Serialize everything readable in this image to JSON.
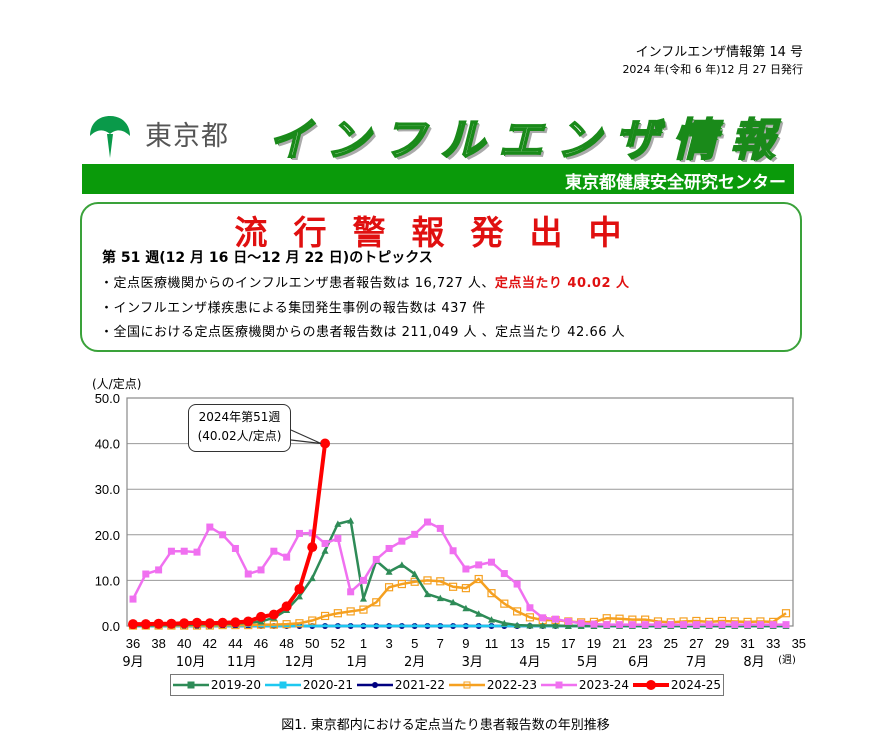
{
  "header": {
    "issue_number": "インフルエンザ情報第 14 号",
    "issue_date": "2024 年(令和 6 年)12 月 27 日発行",
    "org_name": "東京都",
    "title": "インフルエンザ情報",
    "center_name": "東京都健康安全研究センター"
  },
  "alert": {
    "headline": "流行警報発出中",
    "topics_title": "第 51 週(12 月 16 日～12 月 22 日)のトピックス",
    "topics": [
      {
        "text": "・定点医療機関からのインフルエンザ患者報告数は 16,727 人、",
        "highlight": "定点当たり 40.02 人"
      },
      {
        "text": "・インフルエンザ様疾患による集団発生事例の報告数は 437 件",
        "highlight": ""
      },
      {
        "text": "・全国における定点医療機関からの患者報告数は 211,049 人 、定点当たり 42.66 人",
        "highlight": ""
      }
    ]
  },
  "callout": {
    "line1": "2024年第51週",
    "line2": "(40.02人/定点)"
  },
  "caption": "図1. 東京都内における定点当たり患者報告数の年別推移",
  "colors": {
    "green_brand": "#0a9a0a",
    "alert_red": "#e01010",
    "s2019": "#2e8b57",
    "s2020": "#1ec8f0",
    "s2021": "#000080",
    "s2022": "#f5a020",
    "s2023": "#f070f0",
    "s2024": "#ff0000"
  },
  "chart_data": {
    "type": "line",
    "title": "東京都内における定点当たり患者報告数の年別推移",
    "ylabel": "(人/定点)",
    "xlabel": "(週)",
    "ylim": [
      0,
      50
    ],
    "yticks": [
      "0.0",
      "10.0",
      "20.0",
      "30.0",
      "40.0",
      "50.0"
    ],
    "grid": true,
    "legend_position": "bottom",
    "x": [
      36,
      37,
      38,
      39,
      40,
      41,
      42,
      43,
      44,
      45,
      46,
      47,
      48,
      49,
      50,
      51,
      52,
      1,
      2,
      3,
      4,
      5,
      6,
      7,
      8,
      9,
      10,
      11,
      12,
      13,
      14,
      15,
      16,
      17,
      18,
      19,
      20,
      21,
      22,
      23,
      24,
      25,
      26,
      27,
      28,
      29,
      30,
      31,
      32,
      33,
      34,
      35
    ],
    "xtick_labels": [
      "36",
      "38",
      "40",
      "42",
      "44",
      "46",
      "48",
      "50",
      "52",
      "1",
      "3",
      "5",
      "7",
      "9",
      "11",
      "13",
      "15",
      "17",
      "19",
      "21",
      "23",
      "25",
      "27",
      "29",
      "31",
      "33",
      "35"
    ],
    "month_labels": [
      "9月",
      "10月",
      "11月",
      "12月",
      "1月",
      "2月",
      "3月",
      "4月",
      "5月",
      "6月",
      "7月",
      "8月"
    ],
    "series": [
      {
        "name": "2019-20",
        "values": [
          0.1,
          0.1,
          0.2,
          0.2,
          0.3,
          0.3,
          0.4,
          0.4,
          0.5,
          0.7,
          1.0,
          1.8,
          3.5,
          6.5,
          10.5,
          16.5,
          22.4,
          23.1,
          6.0,
          14.3,
          11.9,
          13.4,
          11.4,
          7.0,
          6.1,
          5.2,
          3.9,
          2.7,
          1.4,
          0.6,
          0.2,
          0.1,
          0.1,
          0.1,
          0.0,
          0.0,
          0.0,
          0.0,
          0.0,
          0.0,
          0.0,
          0.0,
          0.0,
          0.0,
          0.0,
          0.0,
          0.0,
          0.0,
          0.0,
          0.0,
          0.0,
          0.0
        ]
      },
      {
        "name": "2020-21",
        "values": [
          0.0,
          0.0,
          0.0,
          0.0,
          0.0,
          0.0,
          0.0,
          0.0,
          0.0,
          0.0,
          0.0,
          0.0,
          0.0,
          0.0,
          0.0,
          0.0,
          0.0,
          0.0,
          0.0,
          0.0,
          0.0,
          0.0,
          0.0,
          0.0,
          0.0,
          0.0,
          0.0,
          0.0,
          0.0,
          0.0,
          0.0,
          0.0,
          0.0,
          0.0,
          0.0,
          0.0,
          0.0,
          0.0,
          0.0,
          0.0,
          0.0,
          0.0,
          0.0,
          0.0,
          0.0,
          0.0,
          0.0,
          0.0,
          0.0,
          0.0,
          0.0,
          0.0
        ]
      },
      {
        "name": "2021-22",
        "values": [
          0.0,
          0.0,
          0.0,
          0.0,
          0.0,
          0.0,
          0.0,
          0.0,
          0.0,
          0.0,
          0.0,
          0.0,
          0.0,
          0.0,
          0.0,
          0.0,
          0.0,
          0.0,
          0.0,
          0.0,
          0.0,
          0.0,
          0.0,
          0.0,
          0.0,
          0.0,
          0.0,
          0.0,
          0.0,
          0.0,
          0.0,
          0.0,
          0.0,
          0.0,
          0.0,
          0.0,
          0.0,
          0.0,
          0.0,
          0.0,
          0.0,
          0.0,
          0.0,
          0.0,
          0.0,
          0.0,
          0.0,
          0.0,
          0.0,
          0.0,
          0.0,
          0.0
        ]
      },
      {
        "name": "2022-23",
        "values": [
          0.1,
          0.1,
          0.1,
          0.1,
          0.1,
          0.1,
          0.1,
          0.2,
          0.2,
          0.2,
          0.3,
          0.3,
          0.4,
          0.6,
          1.2,
          2.2,
          2.8,
          3.2,
          3.6,
          5.2,
          8.5,
          9.2,
          9.7,
          10.0,
          9.8,
          8.6,
          8.3,
          10.3,
          7.2,
          4.9,
          3.2,
          1.9,
          1.3,
          1.3,
          1.0,
          0.8,
          0.9,
          1.7,
          1.6,
          1.4,
          1.4,
          1.0,
          0.8,
          1.0,
          1.1,
          0.9,
          1.1,
          1.0,
          0.9,
          1.0,
          0.9,
          2.8
        ]
      },
      {
        "name": "2023-24",
        "values": [
          5.9,
          11.4,
          12.3,
          16.4,
          16.4,
          16.2,
          21.7,
          20.0,
          17.0,
          11.4,
          12.3,
          16.4,
          15.1,
          20.3,
          20.4,
          18.1,
          19.2,
          7.5,
          10.0,
          14.6,
          17.0,
          18.6,
          20.1,
          22.8,
          21.4,
          16.5,
          12.5,
          13.4,
          14.0,
          11.5,
          9.2,
          4.0,
          1.8,
          1.5,
          1.0,
          0.6,
          0.4,
          0.3,
          0.3,
          0.3,
          0.3,
          0.3,
          0.3,
          0.3,
          0.3,
          0.3,
          0.3,
          0.3,
          0.3,
          0.3,
          0.3,
          0.3
        ]
      },
      {
        "name": "2024-25",
        "values": [
          0.4,
          0.4,
          0.5,
          0.5,
          0.6,
          0.7,
          0.6,
          0.7,
          0.8,
          1.0,
          2.0,
          2.5,
          4.3,
          8.1,
          17.3,
          40.02
        ]
      }
    ]
  }
}
